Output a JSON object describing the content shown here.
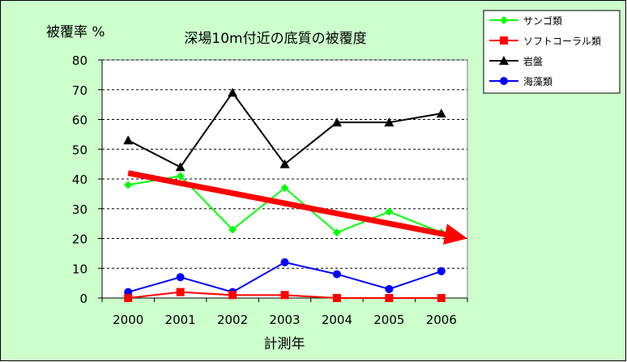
{
  "chart_data": {
    "type": "line",
    "title": "深場10m付近の底質の被覆度",
    "ylabel": "被覆率 %",
    "xlabel": "計測年",
    "categories": [
      "2000",
      "2001",
      "2002",
      "2003",
      "2004",
      "2005",
      "2006"
    ],
    "ylim": [
      0,
      80
    ],
    "yticks": [
      0,
      10,
      20,
      30,
      40,
      50,
      60,
      70,
      80
    ],
    "grid": true,
    "legend_position": "top-right",
    "series": [
      {
        "name": "サンゴ類",
        "color": "#00ff00",
        "marker": "diamond",
        "values": [
          38,
          41,
          23,
          37,
          22,
          29,
          22
        ]
      },
      {
        "name": "ソフトコーラル類",
        "color": "#ff0000",
        "marker": "square",
        "values": [
          0,
          2,
          1,
          1,
          0,
          0,
          0
        ]
      },
      {
        "name": "岩盤",
        "color": "#000000",
        "marker": "triangle",
        "values": [
          53,
          44,
          69,
          45,
          59,
          59,
          62
        ]
      },
      {
        "name": "海藻類",
        "color": "#0000ff",
        "marker": "circle",
        "values": [
          2,
          7,
          2,
          12,
          8,
          3,
          9
        ]
      }
    ],
    "annotations": [
      {
        "type": "trend-arrow",
        "color": "#ff0000",
        "from": [
          "2000",
          42
        ],
        "to_y": 20
      }
    ],
    "colors": {
      "background": "#ccffcc",
      "plot_area": "#ffffff",
      "legend_background": "#ffffff"
    }
  }
}
